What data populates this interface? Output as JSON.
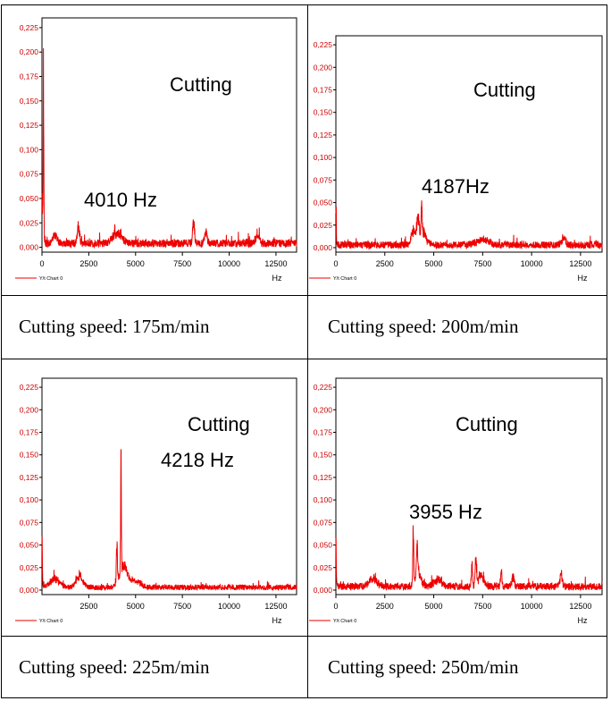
{
  "colors": {
    "series": "#ee0000",
    "axis_tick_labels": "#cc0000",
    "border": "#000000"
  },
  "legend_label": "Y/t Chart 0",
  "x_axis_unit": "Hz",
  "chart_data": [
    {
      "type": "line",
      "annotation_main": "Cutting",
      "peak_label": "4010 Hz",
      "caption": "Cutting speed: 175m/min",
      "xlim": [
        0,
        13600
      ],
      "ylim": [
        -0.005,
        0.235
      ],
      "xticks": [
        0,
        2500,
        5000,
        7500,
        10000,
        12500
      ],
      "xtick_labels": [
        "0",
        "2500",
        "5000",
        "7500",
        "10000",
        "12500"
      ],
      "yticks": [
        0,
        0.025,
        0.05,
        0.075,
        0.1,
        0.125,
        0.15,
        0.175,
        0.2,
        0.225
      ],
      "ytick_labels": [
        "0,000",
        "0,025",
        "0,050",
        "0,075",
        "0,100",
        "0,125",
        "0,150",
        "0,175",
        "0,200",
        "0,225"
      ],
      "xlabel": "Hz",
      "legend": "Y/t Chart 0",
      "base_level": 0.004,
      "noise": 0.004,
      "peaks": [
        {
          "x": 0,
          "y": 0.06,
          "w": 25
        },
        {
          "x": 80,
          "y": 0.2,
          "w": 20
        },
        {
          "x": 700,
          "y": 0.011,
          "w": 120
        },
        {
          "x": 1950,
          "y": 0.022,
          "w": 60
        },
        {
          "x": 4010,
          "y": 0.013,
          "w": 250
        },
        {
          "x": 8100,
          "y": 0.026,
          "w": 50
        },
        {
          "x": 8750,
          "y": 0.014,
          "w": 70
        },
        {
          "x": 11500,
          "y": 0.012,
          "w": 90
        }
      ]
    },
    {
      "type": "line",
      "annotation_main": "Cutting",
      "peak_label": "4187Hz",
      "caption": "Cutting speed: 200m/min",
      "xlim": [
        0,
        13600
      ],
      "ylim": [
        -0.005,
        0.235
      ],
      "xticks": [
        0,
        2500,
        5000,
        7500,
        10000,
        12500
      ],
      "xtick_labels": [
        "0",
        "2500",
        "5000",
        "7500",
        "10000",
        "12500"
      ],
      "yticks": [
        0,
        0.025,
        0.05,
        0.075,
        0.1,
        0.125,
        0.15,
        0.175,
        0.2,
        0.225
      ],
      "ytick_labels": [
        "0,000",
        "0,025",
        "0,050",
        "0,075",
        "0,100",
        "0,125",
        "0,150",
        "0,175",
        "0,200",
        "0,225"
      ],
      "xlabel": "Hz",
      "legend": "Y/t Chart 0",
      "base_level": 0.003,
      "noise": 0.004,
      "peaks": [
        {
          "x": 0,
          "y": 0.07,
          "w": 20
        },
        {
          "x": 3950,
          "y": 0.022,
          "w": 90
        },
        {
          "x": 4187,
          "y": 0.034,
          "w": 70
        },
        {
          "x": 4380,
          "y": 0.041,
          "w": 25
        },
        {
          "x": 4450,
          "y": 0.018,
          "w": 160
        },
        {
          "x": 7500,
          "y": 0.008,
          "w": 300
        },
        {
          "x": 11650,
          "y": 0.008,
          "w": 100
        }
      ]
    },
    {
      "type": "line",
      "annotation_main": "Cutting",
      "peak_label": "4218 Hz",
      "caption": "Cutting speed: 225m/min",
      "xlim": [
        0,
        13600
      ],
      "ylim": [
        -0.005,
        0.235
      ],
      "xticks": [
        2500,
        5000,
        7500,
        10000,
        12500
      ],
      "xtick_labels": [
        "2500",
        "5000",
        "7500",
        "10000",
        "12500"
      ],
      "yticks": [
        0,
        0.025,
        0.05,
        0.075,
        0.1,
        0.125,
        0.15,
        0.175,
        0.2,
        0.225
      ],
      "ytick_labels": [
        "0,000",
        "0,025",
        "0,050",
        "0,075",
        "0,100",
        "0,125",
        "0,150",
        "0,175",
        "0,200",
        "0,225"
      ],
      "xlabel": "Hz",
      "legend": "Y/t Chart 0",
      "base_level": 0.003,
      "noise": 0.003,
      "peaks": [
        {
          "x": 0,
          "y": 0.07,
          "w": 20
        },
        {
          "x": 700,
          "y": 0.012,
          "w": 250
        },
        {
          "x": 2000,
          "y": 0.016,
          "w": 180
        },
        {
          "x": 4000,
          "y": 0.058,
          "w": 25
        },
        {
          "x": 4218,
          "y": 0.143,
          "w": 20
        },
        {
          "x": 4350,
          "y": 0.028,
          "w": 220
        },
        {
          "x": 5000,
          "y": 0.009,
          "w": 300
        }
      ]
    },
    {
      "type": "line",
      "annotation_main": "Cutting",
      "peak_label": "3955 Hz",
      "caption": "Cutting speed: 250m/min",
      "xlim": [
        0,
        13600
      ],
      "ylim": [
        -0.005,
        0.235
      ],
      "xticks": [
        0,
        2500,
        5000,
        7500,
        10000,
        12500
      ],
      "xtick_labels": [
        "0",
        "2500",
        "5000",
        "7500",
        "10000",
        "12500"
      ],
      "yticks": [
        0,
        0.025,
        0.05,
        0.075,
        0.1,
        0.125,
        0.15,
        0.175,
        0.2,
        0.225
      ],
      "ytick_labels": [
        "0,000",
        "0,025",
        "0,050",
        "0,075",
        "0,100",
        "0,125",
        "0,150",
        "0,175",
        "0,200",
        "0,225"
      ],
      "xlabel": "Hz",
      "legend": "Y/t Chart 0",
      "base_level": 0.004,
      "noise": 0.004,
      "peaks": [
        {
          "x": 0,
          "y": 0.06,
          "w": 20
        },
        {
          "x": 1900,
          "y": 0.01,
          "w": 200
        },
        {
          "x": 3955,
          "y": 0.073,
          "w": 22
        },
        {
          "x": 4150,
          "y": 0.045,
          "w": 30
        },
        {
          "x": 4200,
          "y": 0.02,
          "w": 150
        },
        {
          "x": 5200,
          "y": 0.01,
          "w": 200
        },
        {
          "x": 6950,
          "y": 0.033,
          "w": 30
        },
        {
          "x": 7150,
          "y": 0.042,
          "w": 30
        },
        {
          "x": 7400,
          "y": 0.015,
          "w": 150
        },
        {
          "x": 8450,
          "y": 0.02,
          "w": 40
        },
        {
          "x": 9050,
          "y": 0.014,
          "w": 60
        },
        {
          "x": 11500,
          "y": 0.018,
          "w": 60
        }
      ]
    }
  ]
}
